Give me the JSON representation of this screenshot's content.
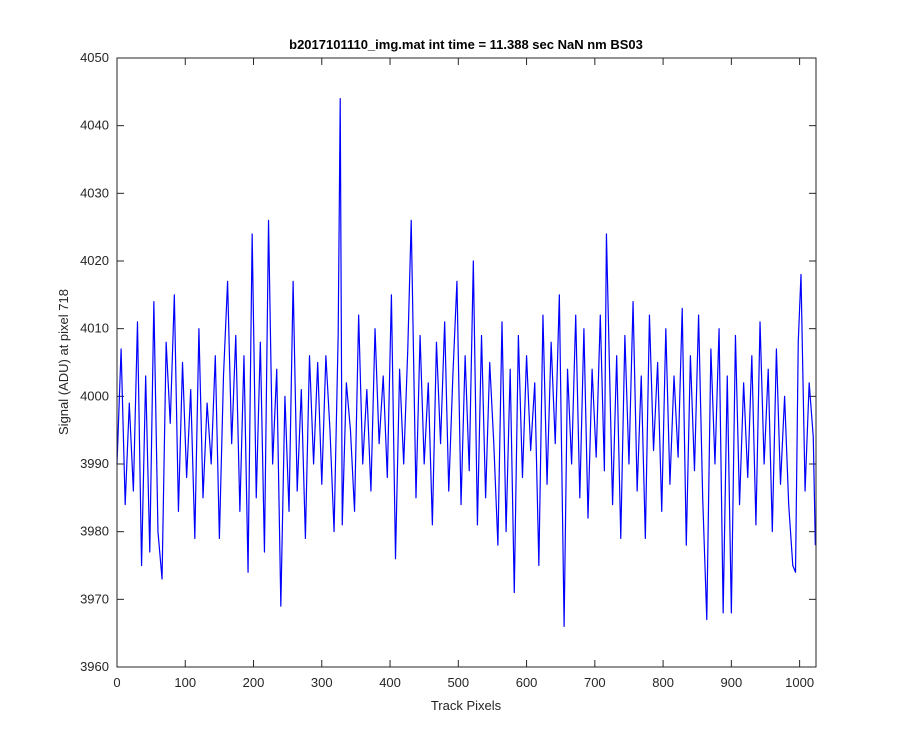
{
  "chart_data": {
    "type": "line",
    "title": "b2017101110_img.mat int time = 11.388 sec  NaN nm BS03",
    "x_label": "Track Pixels",
    "y_label": "Signal (ADU) at pixel 718",
    "color": "#0000ff",
    "xlim": [
      0,
      1024
    ],
    "xticks": [
      0,
      100,
      200,
      300,
      400,
      500,
      600,
      700,
      800,
      900,
      1000
    ],
    "ylim": [
      3960,
      4050
    ],
    "yticks": [
      3960,
      3970,
      3980,
      3990,
      4000,
      4010,
      4020,
      4030,
      4040,
      4050
    ],
    "x": [
      0,
      6,
      12,
      18,
      24,
      30,
      36,
      42,
      48,
      54,
      60,
      66,
      72,
      78,
      84,
      90,
      96,
      102,
      108,
      114,
      120,
      126,
      132,
      138,
      144,
      150,
      156,
      162,
      168,
      174,
      180,
      186,
      192,
      198,
      204,
      210,
      216,
      222,
      228,
      234,
      240,
      246,
      252,
      258,
      264,
      270,
      276,
      282,
      288,
      294,
      300,
      306,
      312,
      318,
      324,
      327,
      330,
      336,
      342,
      348,
      354,
      360,
      366,
      372,
      378,
      384,
      390,
      396,
      402,
      408,
      414,
      420,
      426,
      431,
      438,
      444,
      450,
      456,
      462,
      468,
      474,
      480,
      486,
      492,
      498,
      504,
      510,
      516,
      522,
      528,
      534,
      540,
      546,
      552,
      558,
      564,
      570,
      576,
      582,
      588,
      594,
      600,
      606,
      612,
      618,
      624,
      630,
      636,
      642,
      648,
      655,
      660,
      666,
      672,
      678,
      684,
      690,
      696,
      702,
      708,
      714,
      717,
      726,
      732,
      738,
      744,
      750,
      756,
      762,
      768,
      774,
      780,
      786,
      792,
      798,
      804,
      810,
      816,
      822,
      828,
      834,
      840,
      846,
      852,
      858,
      864,
      870,
      876,
      882,
      888,
      894,
      900,
      906,
      912,
      918,
      924,
      930,
      936,
      942,
      948,
      954,
      960,
      966,
      972,
      978,
      984,
      990,
      994,
      998,
      1002,
      1008,
      1014,
      1020,
      1023
    ],
    "values": [
      3990,
      4007,
      3984,
      3999,
      3986,
      4011,
      3975,
      4003,
      3977,
      4014,
      3980,
      3973,
      4008,
      3996,
      4015,
      3983,
      4005,
      3988,
      4001,
      3979,
      4010,
      3985,
      3999,
      3990,
      4006,
      3979,
      4003,
      4017,
      3993,
      4009,
      3983,
      4006,
      3974,
      4024,
      3985,
      4008,
      3977,
      4026,
      3990,
      4004,
      3969,
      4000,
      3983,
      4017,
      3986,
      4001,
      3979,
      4006,
      3990,
      4005,
      3987,
      4006,
      3995,
      3980,
      4009,
      4044,
      3981,
      4002,
      3995,
      3983,
      4012,
      3990,
      4001,
      3986,
      4010,
      3993,
      4003,
      3988,
      4015,
      3976,
      4004,
      3990,
      4007,
      4026,
      3985,
      4009,
      3990,
      4002,
      3981,
      4008,
      3993,
      4011,
      3986,
      4003,
      4017,
      3984,
      4006,
      3989,
      4020,
      3981,
      4009,
      3985,
      4005,
      3993,
      3978,
      4011,
      3980,
      4004,
      3971,
      4009,
      3988,
      4006,
      3992,
      4002,
      3975,
      4012,
      3987,
      4008,
      3993,
      4015,
      3966,
      4004,
      3990,
      4012,
      3985,
      4010,
      3982,
      4004,
      3991,
      4012,
      3989,
      4024,
      3984,
      4006,
      3979,
      4009,
      3990,
      4014,
      3986,
      4003,
      3979,
      4012,
      3992,
      4005,
      3983,
      4010,
      3987,
      4003,
      3991,
      4013,
      3978,
      4006,
      3989,
      4012,
      3985,
      3967,
      4007,
      3990,
      4010,
      3968,
      4003,
      3968,
      4009,
      3984,
      4002,
      3988,
      4006,
      3981,
      4011,
      3990,
      4004,
      3980,
      4007,
      3987,
      4000,
      3984,
      3975,
      3974,
      4008,
      4018,
      3986,
      4002,
      3994,
      3978
    ]
  }
}
